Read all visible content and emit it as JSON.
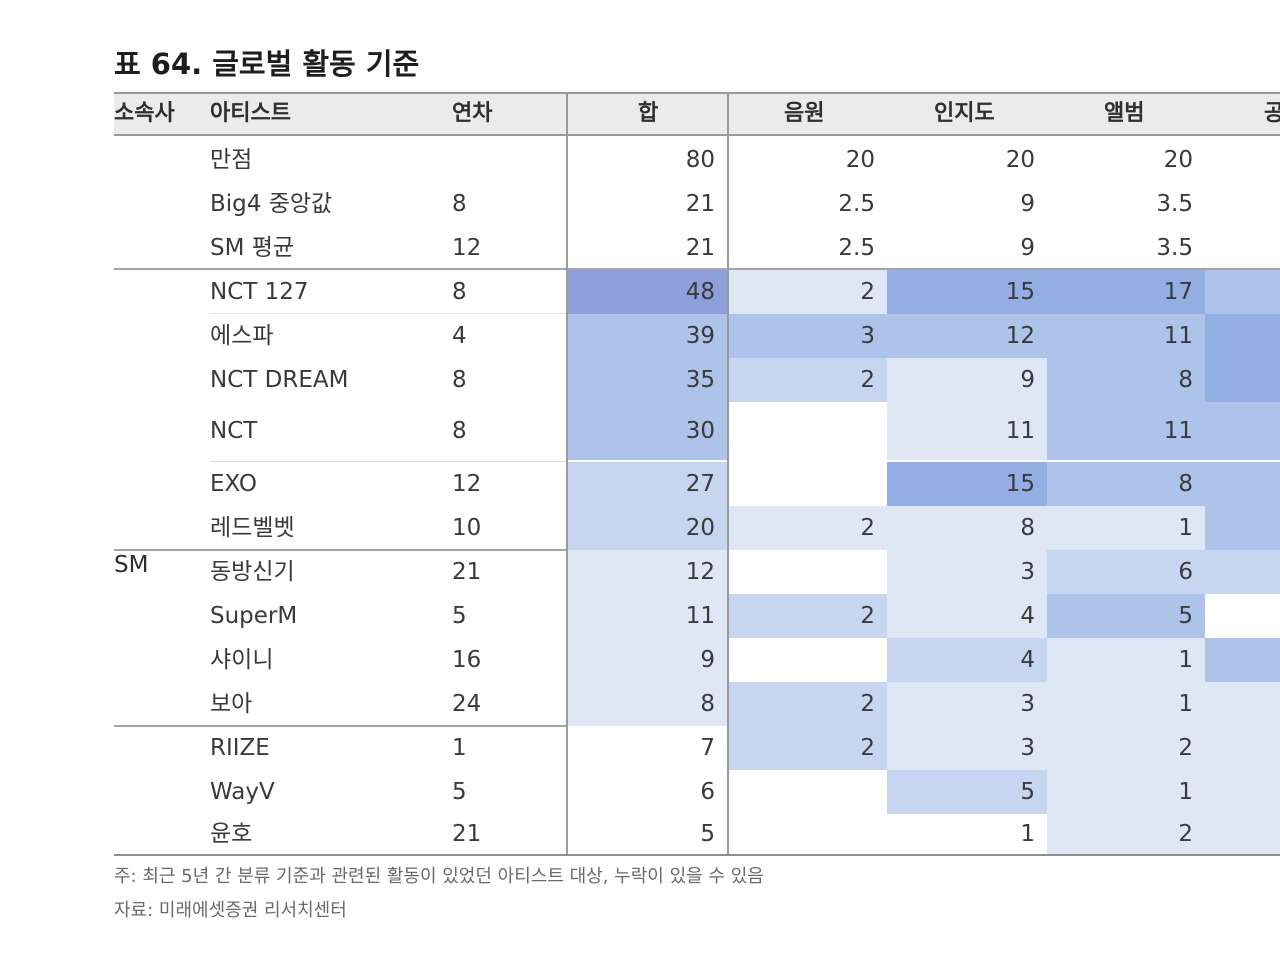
{
  "title": "표 64. 글로벌 활동 기준",
  "headers": [
    "소속사",
    "아티스트",
    "연차",
    "합",
    "음원",
    "인지도",
    "앨범",
    "공"
  ],
  "group_label": "SM",
  "reference_rows": [
    {
      "artist": "만점",
      "years": "",
      "sum": "80",
      "music": "20",
      "recognition": "20",
      "album": "20"
    },
    {
      "artist": "Big4 중앙값",
      "years": "8",
      "sum": "21",
      "music": "2.5",
      "recognition": "9",
      "album": "3.5"
    },
    {
      "artist": "SM 평균",
      "years": "12",
      "sum": "21",
      "music": "2.5",
      "recognition": "9",
      "album": "3.5"
    }
  ],
  "rows": [
    {
      "artist": "NCT 127",
      "years": "8",
      "sum": "48",
      "music": "2",
      "recognition": "15",
      "album": "17",
      "sum_level": 5,
      "music_level": 1,
      "recognition_level": 4,
      "album_level": 4,
      "extra_level": 3
    },
    {
      "artist": "에스파",
      "years": "4",
      "sum": "39",
      "music": "3",
      "recognition": "12",
      "album": "11",
      "sum_level": 3,
      "music_level": 3,
      "recognition_level": 3,
      "album_level": 3,
      "extra_level": 4
    },
    {
      "artist": "NCT DREAM",
      "years": "8",
      "sum": "35",
      "music": "2",
      "recognition": "9",
      "album": "8",
      "sum_level": 3,
      "music_level": 2,
      "recognition_level": 1,
      "album_level": 3,
      "extra_level": 4
    },
    {
      "artist": "NCT",
      "years": "8",
      "sum": "30",
      "music": "",
      "recognition": "11",
      "album": "11",
      "sum_level": 3,
      "music_level": 0,
      "recognition_level": 1,
      "album_level": 3,
      "extra_level": 3
    },
    {
      "artist": "EXO",
      "years": "12",
      "sum": "27",
      "music": "",
      "recognition": "15",
      "album": "8",
      "sum_level": 2,
      "music_level": 0,
      "recognition_level": 4,
      "album_level": 3,
      "extra_level": 3
    },
    {
      "artist": "레드벨벳",
      "years": "10",
      "sum": "20",
      "music": "2",
      "recognition": "8",
      "album": "1",
      "sum_level": 2,
      "music_level": 1,
      "recognition_level": 1,
      "album_level": 1,
      "extra_level": 3
    },
    {
      "artist": "동방신기",
      "years": "21",
      "sum": "12",
      "music": "",
      "recognition": "3",
      "album": "6",
      "sum_level": 1,
      "music_level": 0,
      "recognition_level": 1,
      "album_level": 2,
      "extra_level": 2
    },
    {
      "artist": "SuperM",
      "years": "5",
      "sum": "11",
      "music": "2",
      "recognition": "4",
      "album": "5",
      "sum_level": 1,
      "music_level": 2,
      "recognition_level": 1,
      "album_level": 3,
      "extra_level": 0
    },
    {
      "artist": "샤이니",
      "years": "16",
      "sum": "9",
      "music": "",
      "recognition": "4",
      "album": "1",
      "sum_level": 1,
      "music_level": 0,
      "recognition_level": 2,
      "album_level": 1,
      "extra_level": 3
    },
    {
      "artist": "보아",
      "years": "24",
      "sum": "8",
      "music": "2",
      "recognition": "3",
      "album": "1",
      "sum_level": 1,
      "music_level": 2,
      "recognition_level": 1,
      "album_level": 1,
      "extra_level": 1
    },
    {
      "artist": "RIIZE",
      "years": "1",
      "sum": "7",
      "music": "2",
      "recognition": "3",
      "album": "2",
      "sum_level": 0,
      "music_level": 2,
      "recognition_level": 1,
      "album_level": 1,
      "extra_level": 1
    },
    {
      "artist": "WayV",
      "years": "5",
      "sum": "6",
      "music": "",
      "recognition": "5",
      "album": "1",
      "sum_level": 0,
      "music_level": 0,
      "recognition_level": 2,
      "album_level": 1,
      "extra_level": 1
    },
    {
      "artist": "윤호",
      "years": "21",
      "sum": "5",
      "music": "",
      "recognition": "1",
      "album": "2",
      "sum_level": 0,
      "music_level": 0,
      "recognition_level": 0,
      "album_level": 1,
      "extra_level": 1
    }
  ],
  "heat_colors": [
    "#ffffff",
    "#dfe7f5",
    "#c7d6f0",
    "#adc3ea",
    "#93aee3",
    "#8f9fdc"
  ],
  "footnote": "주: 최근 5년 간 분류 기준과 관련된 활동이 있었던 아티스트 대상, 누락이 있을 수 있음",
  "source": "자료: 미래에셋증권 리서치센터"
}
